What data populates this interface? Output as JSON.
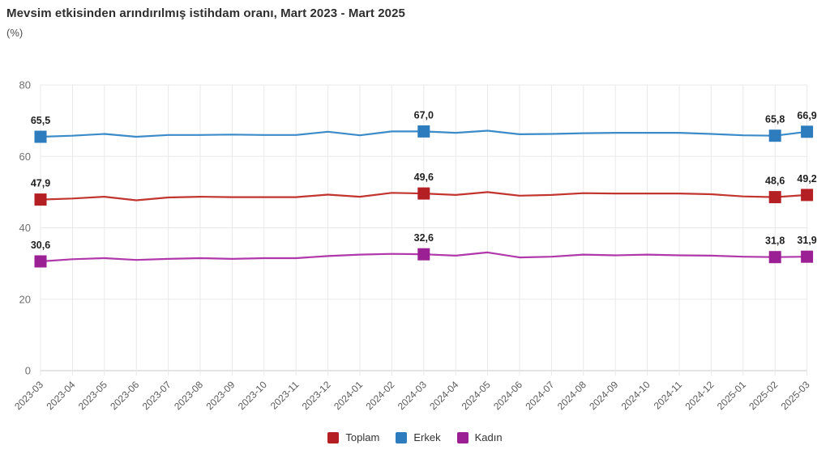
{
  "header": {
    "title": "Mevsim etkisinden arındırılmış istihdam oranı, Mart 2023 - Mart 2025",
    "subtitle": "(%)"
  },
  "chart_data": {
    "type": "line",
    "title": "Mevsim etkisinden arındırılmış istihdam oranı, Mart 2023 - Mart 2025",
    "xlabel": "",
    "ylabel": "(%)",
    "ylim": [
      0,
      80
    ],
    "yticks": [
      0,
      20,
      40,
      60,
      80
    ],
    "grid": true,
    "legend_position": "bottom",
    "decimal_separator": ",",
    "categories": [
      "2023-03",
      "2023-04",
      "2023-05",
      "2023-06",
      "2023-07",
      "2023-08",
      "2023-09",
      "2023-10",
      "2023-11",
      "2023-12",
      "2024-01",
      "2024-02",
      "2024-03",
      "2024-04",
      "2024-05",
      "2024-06",
      "2024-07",
      "2024-08",
      "2024-09",
      "2024-10",
      "2024-11",
      "2024-12",
      "2025-01",
      "2025-02",
      "2025-03"
    ],
    "labeled_indices": [
      0,
      12,
      23,
      24
    ],
    "labeled_points_note": "square markers with bold value labels at 2023-03, 2024-03, 2025-02, 2025-03",
    "series": [
      {
        "name": "Toplam",
        "color": "#b41f24",
        "line_color": "#c2342e",
        "values": [
          47.9,
          48.2,
          48.7,
          47.7,
          48.5,
          48.7,
          48.6,
          48.6,
          48.6,
          49.3,
          48.7,
          49.8,
          49.6,
          49.2,
          50.0,
          49.0,
          49.2,
          49.7,
          49.6,
          49.6,
          49.6,
          49.4,
          48.8,
          48.6,
          49.2
        ],
        "labeled_values": [
          "47,9",
          "49,6",
          "48,6",
          "49,2"
        ]
      },
      {
        "name": "Erkek",
        "color": "#2c7cbe",
        "line_color": "#3c8bc9",
        "values": [
          65.5,
          65.8,
          66.3,
          65.5,
          66.0,
          66.0,
          66.1,
          66.0,
          66.0,
          66.9,
          65.9,
          67.0,
          67.0,
          66.6,
          67.2,
          66.2,
          66.3,
          66.5,
          66.6,
          66.6,
          66.6,
          66.3,
          65.9,
          65.8,
          66.9
        ],
        "labeled_values": [
          "65,5",
          "67,0",
          "65,8",
          "66,9"
        ]
      },
      {
        "name": "Kadın",
        "color": "#9a2093",
        "line_color": "#b038aa",
        "values": [
          30.6,
          31.2,
          31.5,
          31.0,
          31.3,
          31.5,
          31.3,
          31.5,
          31.5,
          32.1,
          32.5,
          32.7,
          32.6,
          32.2,
          33.1,
          31.7,
          31.9,
          32.5,
          32.3,
          32.5,
          32.3,
          32.2,
          31.9,
          31.8,
          31.9
        ],
        "labeled_values": [
          "30,6",
          "32,6",
          "31,8",
          "31,9"
        ]
      }
    ]
  },
  "legend": {
    "items": [
      {
        "label": "Toplam",
        "color": "#b41f24"
      },
      {
        "label": "Erkek",
        "color": "#2c7cbe"
      },
      {
        "label": "Kadın",
        "color": "#9a2093"
      }
    ]
  },
  "colors": {
    "gridline": "#e8e8e8",
    "baseline": "#c9c9c9",
    "title_text": "#2e2e2e",
    "axis_text": "#595959"
  }
}
